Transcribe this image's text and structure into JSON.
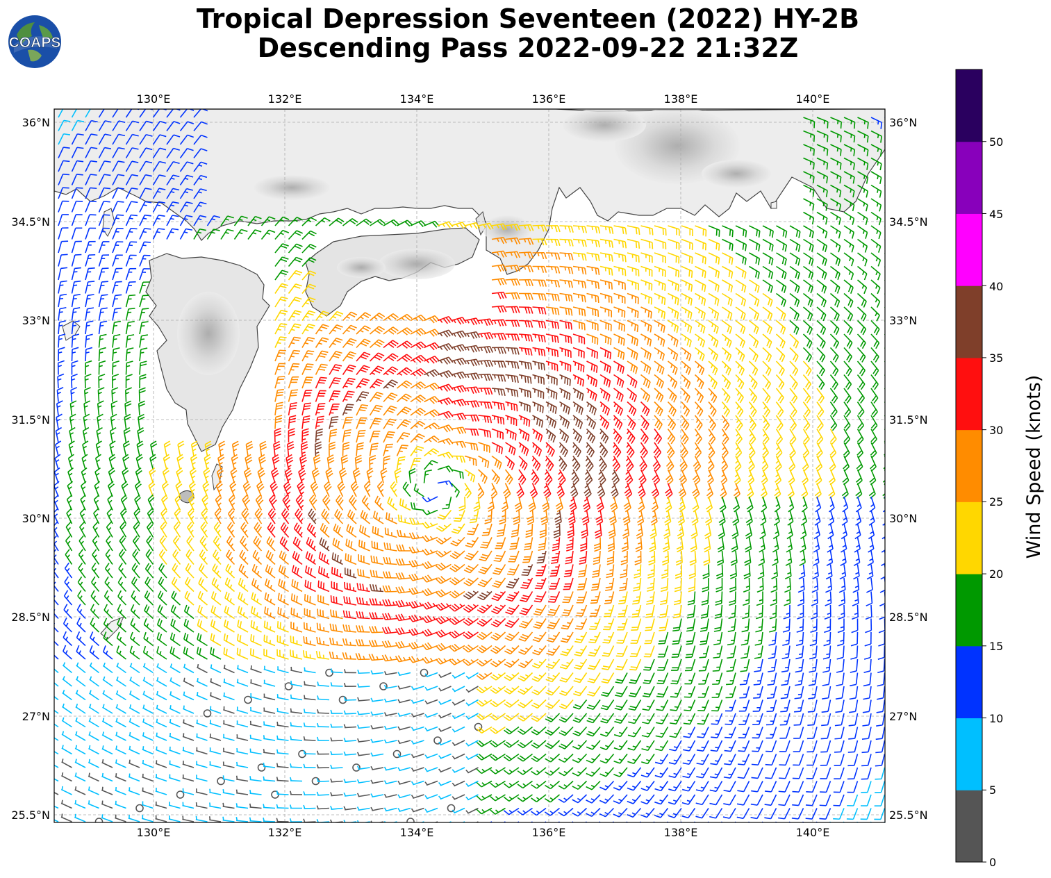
{
  "title_line1": "Tropical Depression Seventeen (2022) HY-2B",
  "title_line2": "Descending Pass 2022-09-22 21:32Z",
  "logo_text": "COAPS",
  "lon_ticks": [
    "130°E",
    "132°E",
    "134°E",
    "136°E",
    "138°E",
    "140°E"
  ],
  "lat_ticks": [
    "36°N",
    "34.5°N",
    "33°N",
    "31.5°N",
    "30°N",
    "28.5°N",
    "27°N",
    "25.5°N"
  ],
  "colorbar": {
    "label": "Wind Speed (knots)",
    "ticks": [
      "0",
      "5",
      "10",
      "15",
      "20",
      "25",
      "30",
      "35",
      "40",
      "45",
      "50"
    ],
    "colors": [
      "#555555",
      "#00bfff",
      "#0033ff",
      "#009900",
      "#ffd700",
      "#ff8c00",
      "#ff0f0f",
      "#7f3f2a",
      "#ff00ff",
      "#8800bb",
      "#2a005f"
    ]
  },
  "chart_data": {
    "type": "wind-barb map",
    "lon_range": [
      128.5,
      141.1
    ],
    "lat_range": [
      25.3,
      36.2
    ],
    "storm_center": {
      "lon": 134.3,
      "lat": 30.4
    },
    "speed_bins_knots": [
      0,
      5,
      10,
      15,
      20,
      25,
      30,
      35,
      40,
      45,
      50,
      55
    ]
  }
}
